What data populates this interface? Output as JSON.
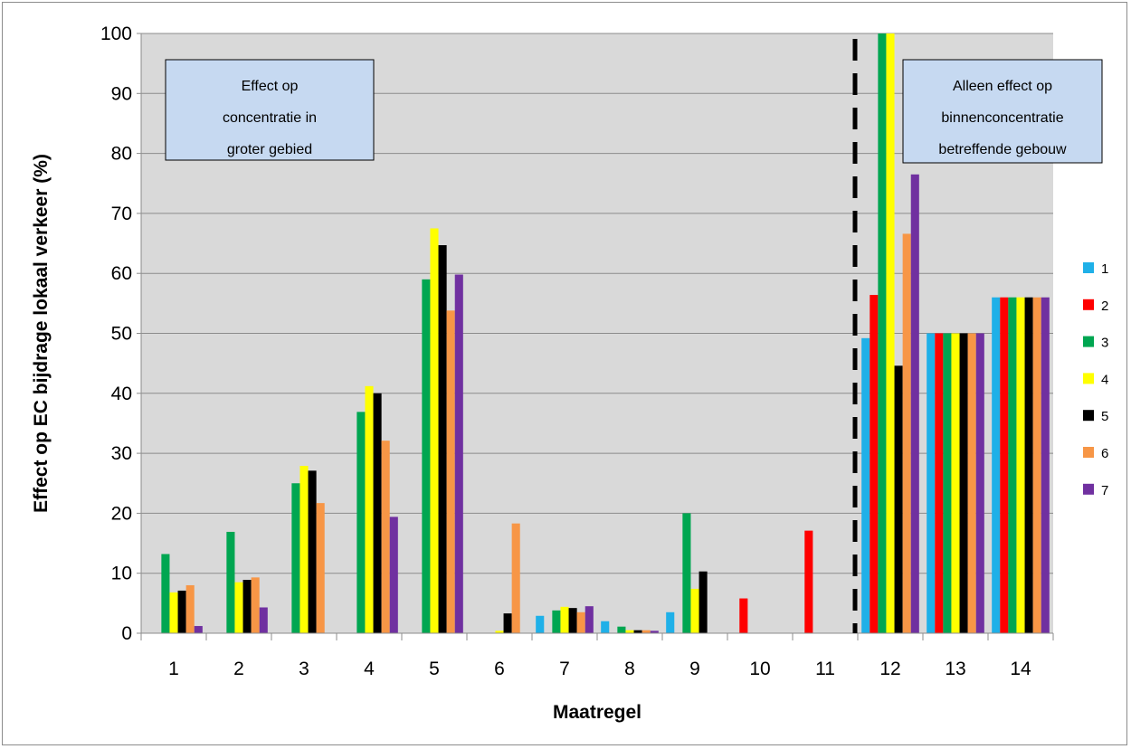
{
  "chart_data": {
    "type": "bar",
    "title": "",
    "xlabel": "Maatregel",
    "ylabel": "Effect op EC bijdrage lokaal verkeer (%)",
    "ylim": [
      0,
      100
    ],
    "yticks": [
      0,
      10,
      20,
      30,
      40,
      50,
      60,
      70,
      80,
      90,
      100
    ],
    "categories": [
      "1",
      "2",
      "3",
      "4",
      "5",
      "6",
      "7",
      "8",
      "9",
      "10",
      "11",
      "12",
      "13",
      "14"
    ],
    "grid": true,
    "legend_position": "right",
    "series": [
      {
        "name": "1",
        "color": "#1fb0e8",
        "values": [
          0,
          0,
          0,
          0,
          0,
          0,
          2.9,
          2.0,
          3.5,
          0,
          0,
          49.2,
          50,
          56
        ]
      },
      {
        "name": "2",
        "color": "#ff0000",
        "values": [
          0,
          0,
          0,
          0,
          0,
          0,
          0,
          0,
          0,
          5.8,
          17.1,
          56.4,
          50,
          56
        ]
      },
      {
        "name": "3",
        "color": "#00a651",
        "values": [
          13.2,
          16.9,
          25.0,
          36.9,
          59.0,
          0,
          3.8,
          1.1,
          20.0,
          0,
          0,
          100,
          50,
          56
        ]
      },
      {
        "name": "4",
        "color": "#ffff00",
        "values": [
          6.8,
          8.5,
          27.9,
          41.2,
          67.5,
          0.4,
          4.4,
          0.5,
          7.4,
          0,
          0,
          100,
          50,
          56
        ]
      },
      {
        "name": "5",
        "color": "#000000",
        "values": [
          7.1,
          8.9,
          27.1,
          40.0,
          64.7,
          3.3,
          4.2,
          0.5,
          10.3,
          0,
          0,
          44.6,
          50,
          56
        ]
      },
      {
        "name": "6",
        "color": "#f79646",
        "values": [
          8.0,
          9.3,
          21.7,
          32.1,
          53.8,
          18.3,
          3.5,
          0.5,
          0,
          0,
          0,
          66.6,
          50,
          56
        ]
      },
      {
        "name": "7",
        "color": "#7030a0",
        "values": [
          1.2,
          4.3,
          0,
          19.4,
          59.8,
          0,
          4.5,
          0.4,
          0,
          0,
          0,
          76.5,
          50,
          56
        ]
      }
    ],
    "annotations": [
      {
        "lines": [
          "Effect op",
          "concentratie in",
          "groter gebied"
        ]
      },
      {
        "lines": [
          "Alleen effect op",
          "binnenconcentratie",
          "betreffende gebouw"
        ]
      }
    ],
    "divider_between_categories": [
      "11",
      "12"
    ]
  }
}
